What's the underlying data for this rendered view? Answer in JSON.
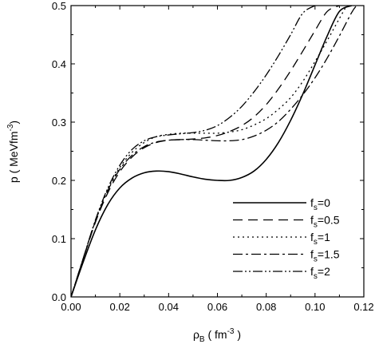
{
  "chart_data": {
    "type": "line",
    "title": "",
    "xlabel": {
      "main": "ρ",
      "sub": "B",
      "unit_pre": " ( fm",
      "unit_sup": "-3",
      "unit_post": " )"
    },
    "ylabel": {
      "main": "p ( MeVfm",
      "sup": "-3",
      "post": ")"
    },
    "xlim": [
      0.0,
      0.12
    ],
    "ylim": [
      0.0,
      0.5
    ],
    "xticks": [
      "0.00",
      "0.02",
      "0.04",
      "0.06",
      "0.08",
      "0.10",
      "0.12"
    ],
    "xtick_values": [
      0.0,
      0.02,
      0.04,
      0.06,
      0.08,
      0.1,
      0.12
    ],
    "yticks": [
      "0.0",
      "0.1",
      "0.2",
      "0.3",
      "0.4",
      "0.5"
    ],
    "ytick_values": [
      0.0,
      0.1,
      0.2,
      0.3,
      0.4,
      0.5
    ],
    "grid": false,
    "legend_position": "bottom-right",
    "series": [
      {
        "name": "f_s=0",
        "label_main": "f",
        "label_sub": "s",
        "label_rest": "=0",
        "dash": "",
        "x": [
          0,
          0.005,
          0.01,
          0.015,
          0.02,
          0.025,
          0.03,
          0.035,
          0.04,
          0.045,
          0.05,
          0.055,
          0.06,
          0.065,
          0.07,
          0.075,
          0.08,
          0.085,
          0.09,
          0.095,
          0.1,
          0.105,
          0.11,
          0.115
        ],
        "y": [
          0,
          0.06,
          0.115,
          0.158,
          0.187,
          0.204,
          0.213,
          0.216,
          0.215,
          0.211,
          0.206,
          0.202,
          0.2,
          0.2,
          0.205,
          0.216,
          0.236,
          0.265,
          0.303,
          0.348,
          0.398,
          0.448,
          0.49,
          0.5
        ]
      },
      {
        "name": "f_s=0.5",
        "label_main": "f",
        "label_sub": "s",
        "label_rest": "=0.5",
        "dash": "12,7",
        "x": [
          0,
          0.005,
          0.01,
          0.015,
          0.02,
          0.025,
          0.03,
          0.035,
          0.04,
          0.045,
          0.05,
          0.055,
          0.06,
          0.065,
          0.07,
          0.075,
          0.08,
          0.085,
          0.09,
          0.095,
          0.1,
          0.105,
          0.11
        ],
        "y": [
          0,
          0.065,
          0.128,
          0.178,
          0.215,
          0.24,
          0.256,
          0.265,
          0.269,
          0.27,
          0.271,
          0.273,
          0.277,
          0.284,
          0.294,
          0.309,
          0.33,
          0.357,
          0.388,
          0.422,
          0.457,
          0.49,
          0.5
        ]
      },
      {
        "name": "f_s=1",
        "label_main": "f",
        "label_sub": "s",
        "label_rest": "=1",
        "dash": "2,4",
        "x": [
          0,
          0.005,
          0.01,
          0.015,
          0.02,
          0.025,
          0.03,
          0.035,
          0.04,
          0.045,
          0.05,
          0.055,
          0.06,
          0.065,
          0.07,
          0.075,
          0.08,
          0.085,
          0.09,
          0.095,
          0.1,
          0.105,
          0.11,
          0.113
        ],
        "y": [
          0,
          0.066,
          0.131,
          0.184,
          0.222,
          0.248,
          0.265,
          0.275,
          0.279,
          0.281,
          0.281,
          0.281,
          0.281,
          0.283,
          0.287,
          0.295,
          0.306,
          0.322,
          0.342,
          0.37,
          0.404,
          0.44,
          0.478,
          0.5
        ]
      },
      {
        "name": "f_s=1.5",
        "label_main": "f",
        "label_sub": "s",
        "label_rest": "=1.5",
        "dash": "12,4,3,4",
        "x": [
          0,
          0.005,
          0.01,
          0.015,
          0.02,
          0.025,
          0.03,
          0.035,
          0.04,
          0.045,
          0.05,
          0.055,
          0.06,
          0.065,
          0.07,
          0.075,
          0.08,
          0.085,
          0.09,
          0.095,
          0.1,
          0.105,
          0.11,
          0.115,
          0.117
        ],
        "y": [
          0,
          0.066,
          0.13,
          0.182,
          0.219,
          0.243,
          0.258,
          0.266,
          0.269,
          0.27,
          0.27,
          0.269,
          0.268,
          0.268,
          0.27,
          0.276,
          0.286,
          0.301,
          0.322,
          0.347,
          0.376,
          0.41,
          0.448,
          0.488,
          0.5
        ]
      },
      {
        "name": "f_s=2",
        "label_main": "f",
        "label_sub": "s",
        "label_rest": "=2",
        "dash": "12,3,2,3,2,3",
        "x": [
          0,
          0.005,
          0.01,
          0.015,
          0.02,
          0.025,
          0.03,
          0.035,
          0.04,
          0.045,
          0.05,
          0.055,
          0.06,
          0.065,
          0.07,
          0.075,
          0.08,
          0.085,
          0.09,
          0.095,
          0.1
        ],
        "y": [
          0,
          0.066,
          0.132,
          0.186,
          0.226,
          0.253,
          0.268,
          0.275,
          0.278,
          0.28,
          0.282,
          0.286,
          0.294,
          0.308,
          0.327,
          0.352,
          0.381,
          0.414,
          0.45,
          0.487,
          0.5
        ]
      }
    ]
  }
}
